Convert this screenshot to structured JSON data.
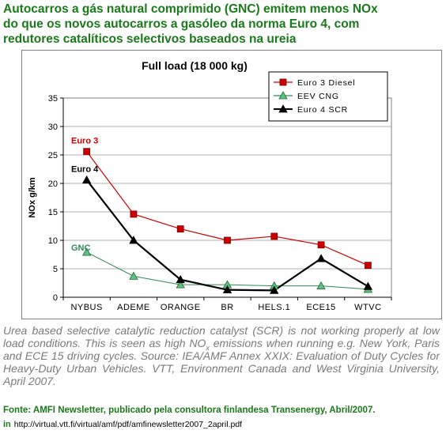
{
  "headline": {
    "line1": "Autocarros a gás natural comprimido (GNC) emitem menos NOx",
    "line2": "do que os novos autocarros a gasóleo da norma Euro 4, com",
    "line3": "redutores  catalíticos selectivos baseados na ureia"
  },
  "caption": {
    "part1": "Urea based selective catalytic reduction catalyst (SCR) is not working properly at low load conditions. This is seen as high NO",
    "sub": "x",
    "part2": " emissions when running e.g. New York, Paris and ECE 15 driving cycles. Source: IEA/AMF Annex XXIX: Evaluation of Duty Cycles for Heavy-Duty Urban Vehicles. VTT, Environment Canada and West Virginia University, April 2007."
  },
  "source_line": "Fonte:  AMFI Newsletter,  publicado pela consultora finlandesa Transenergy, Abril/2007.",
  "link_prefix": "in",
  "link_url": "http://virtual.vtt.fi/virtual/amf/pdf/amfinewsletter2007_2april.pdf",
  "colors": {
    "headline": "#1a7a1a",
    "euro3": "#cc0000",
    "eev": "#2e8b57",
    "euro4": "#000000"
  },
  "chart_data": {
    "type": "line",
    "title": "Full load (18 000 kg)",
    "ylabel": "NOx g/km",
    "xlabel": "",
    "categories": [
      "NYBUS",
      "ADEME",
      "ORANGE",
      "BR",
      "HELS.1",
      "ECE15",
      "WTVC"
    ],
    "ylim": [
      0,
      35
    ],
    "yticks": [
      0,
      5,
      10,
      15,
      20,
      25,
      30,
      35
    ],
    "grid": true,
    "legend_position": "top-right",
    "series": [
      {
        "name": "Euro 3 Diesel",
        "color": "#cc0000",
        "marker": "square",
        "values": [
          25.6,
          14.6,
          12.0,
          10.0,
          10.7,
          9.2,
          5.6
        ]
      },
      {
        "name": "EEV CNG",
        "color": "#2e8b57",
        "marker": "triangle",
        "values": [
          7.9,
          3.7,
          2.2,
          2.2,
          2.0,
          2.0,
          1.4
        ]
      },
      {
        "name": "Euro 4 SCR",
        "color": "#000000",
        "marker": "triangle",
        "values": [
          20.6,
          10.0,
          3.1,
          1.3,
          1.2,
          6.8,
          1.9
        ]
      }
    ],
    "annotations": [
      {
        "text": "Euro 3",
        "series": "Euro 3 Diesel",
        "color": "#cc0000"
      },
      {
        "text": "Euro 4",
        "series": "Euro 4 SCR",
        "color": "#000000"
      },
      {
        "text": "GNC",
        "series": "EEV CNG",
        "color": "#2e8b57"
      }
    ]
  }
}
